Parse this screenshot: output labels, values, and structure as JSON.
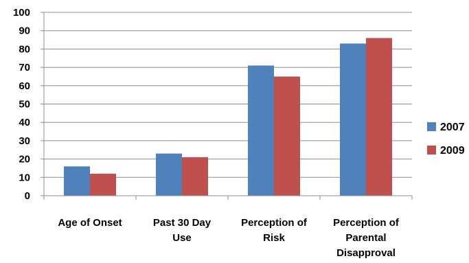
{
  "chart_data": {
    "type": "bar",
    "categories": [
      [
        "Age of Onset"
      ],
      [
        "Past 30 Day",
        "Use"
      ],
      [
        "Perception of",
        "Risk"
      ],
      [
        "Perception of",
        "Parental",
        "Disapproval"
      ]
    ],
    "series": [
      {
        "name": "2007",
        "color": "#4f81bd",
        "values": [
          16,
          23,
          71,
          83
        ]
      },
      {
        "name": "2009",
        "color": "#c0504d",
        "values": [
          12,
          21,
          65,
          86
        ]
      }
    ],
    "ylim": [
      0,
      100
    ],
    "yticks": [
      0,
      10,
      20,
      30,
      40,
      50,
      60,
      70,
      80,
      90,
      100
    ],
    "grid": true,
    "legend_position": "right",
    "title": "",
    "xlabel": "",
    "ylabel": ""
  }
}
